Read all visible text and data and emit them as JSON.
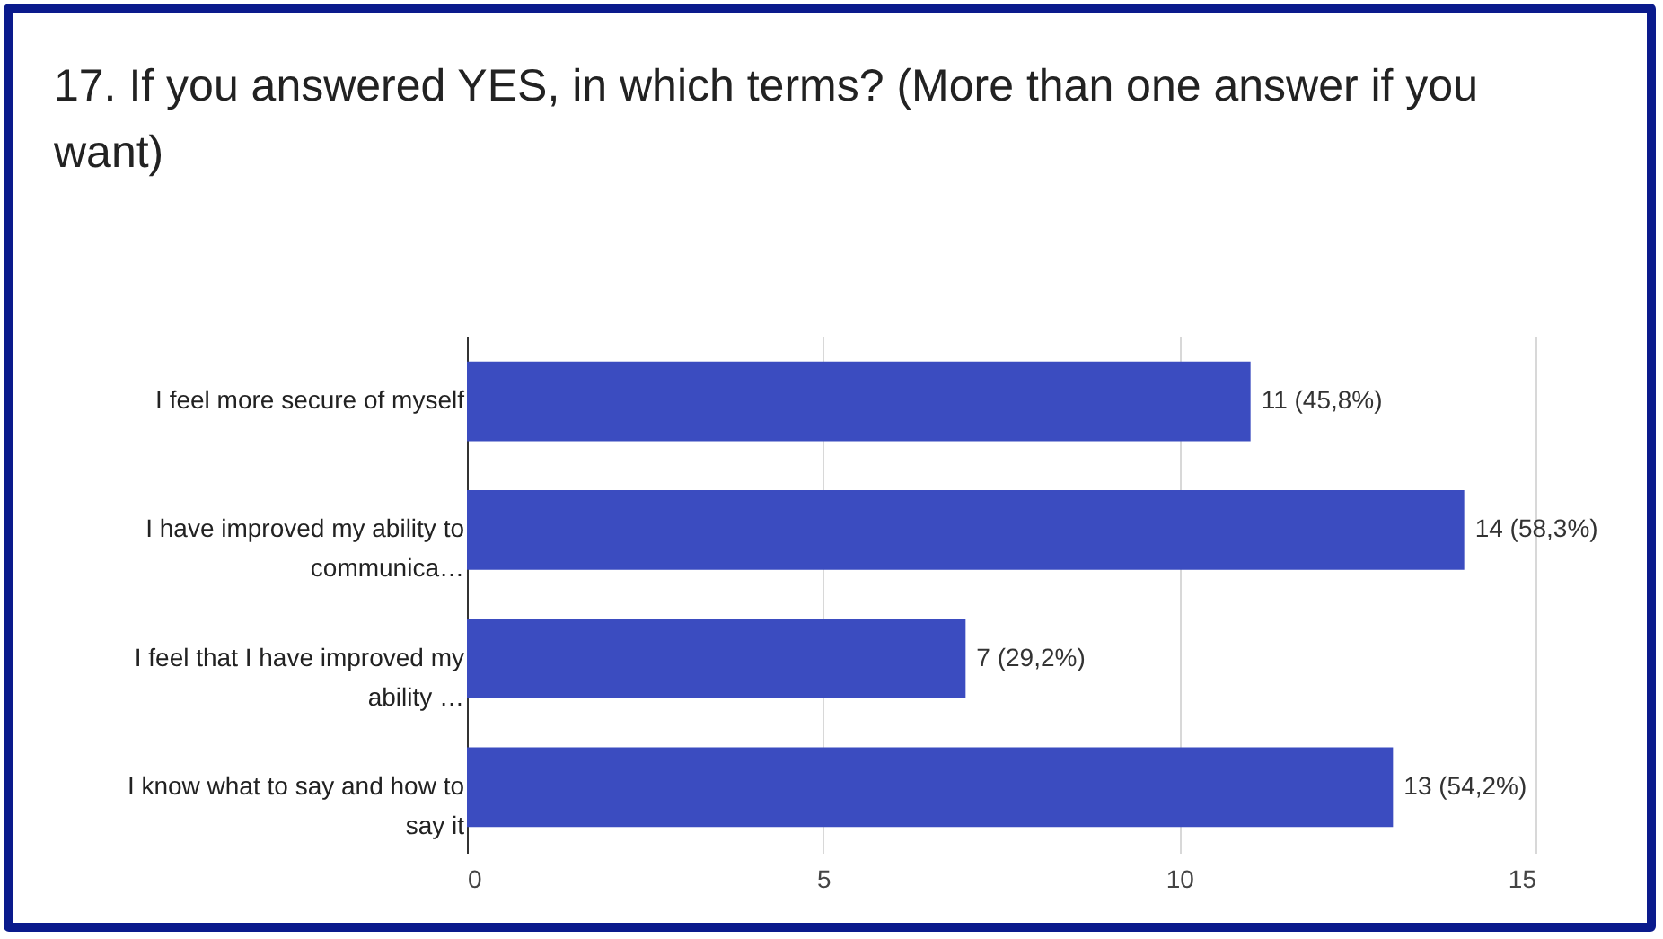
{
  "chart_data": {
    "type": "bar",
    "orientation": "horizontal",
    "title": "17. If you answered YES, in which terms? (More than one answer if you want)",
    "categories": [
      "I feel more secure of myself",
      "I have improved my ability to\ncommunica…",
      "I feel that I have improved my\nability …",
      "I know what to say and how to\nsay it"
    ],
    "values": [
      11,
      14,
      7,
      13
    ],
    "value_labels": [
      "11 (45,8%)",
      "14 (58,3%)",
      "7 (29,2%)",
      "13 (54,2%)"
    ],
    "color": "#3b4cc0",
    "xlim": [
      0,
      15
    ],
    "xticks": [
      0,
      5,
      10,
      15
    ],
    "grid": "x"
  }
}
